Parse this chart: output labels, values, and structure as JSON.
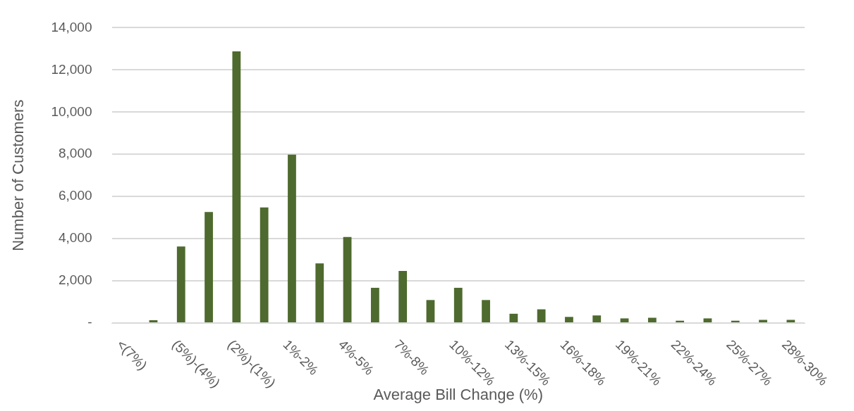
{
  "chart_data": {
    "type": "bar",
    "xlabel": "Average Bill Change (%)",
    "ylabel": "Number of Customers",
    "categories": [
      "<(7%)",
      null,
      "(5%)-(4%)",
      null,
      "(2%)-(1%)",
      null,
      "1%-2%",
      null,
      "4%-5%",
      null,
      "7%-8%",
      null,
      "10%-12%",
      null,
      "13%-15%",
      null,
      "16%-18%",
      null,
      "19%-21%",
      null,
      "22%-24%",
      null,
      "25%-27%",
      null,
      "28%-30%"
    ],
    "values": [
      0,
      130,
      3630,
      5260,
      12880,
      5480,
      7980,
      2830,
      4080,
      1670,
      2470,
      1090,
      1670,
      1090,
      440,
      650,
      290,
      360,
      220,
      250,
      110,
      220,
      110,
      150,
      150
    ],
    "color": "#4e6a2e",
    "ylim": [
      0,
      14000
    ],
    "yticks": [
      {
        "value": 0,
        "label": "-"
      },
      {
        "value": 2000,
        "label": "2,000"
      },
      {
        "value": 4000,
        "label": "4,000"
      },
      {
        "value": 6000,
        "label": "6,000"
      },
      {
        "value": 8000,
        "label": "8,000"
      },
      {
        "value": 10000,
        "label": "10,000"
      },
      {
        "value": 12000,
        "label": "12,000"
      },
      {
        "value": 14000,
        "label": "14,000"
      }
    ],
    "grid": "y"
  }
}
